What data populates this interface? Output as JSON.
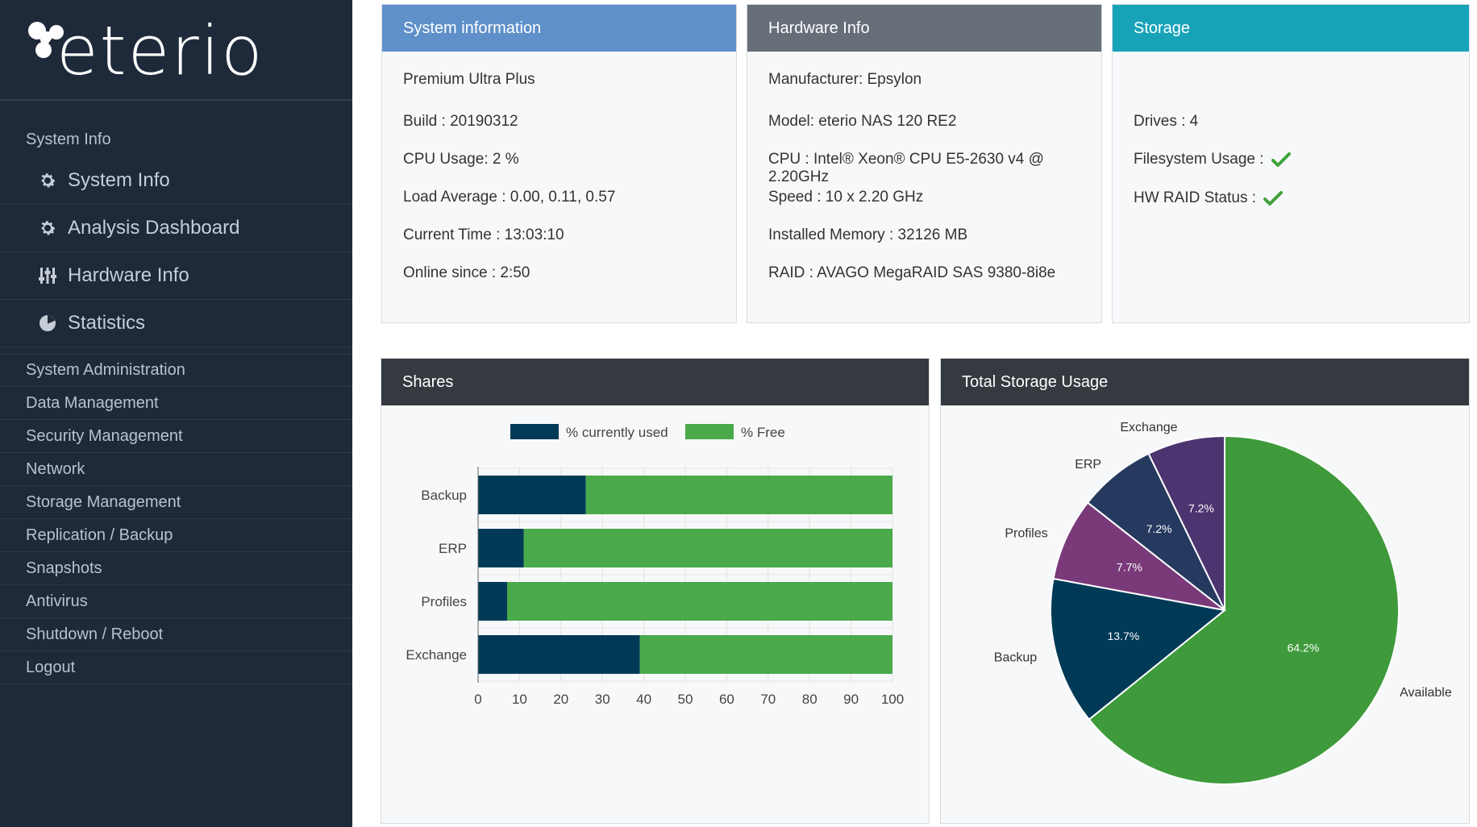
{
  "brand": {
    "name": "eterio"
  },
  "sidebar": {
    "section_title": "System Info",
    "sub_items": [
      {
        "label": "System Info",
        "icon": "gear-icon"
      },
      {
        "label": "Analysis Dashboard",
        "icon": "gear-icon"
      },
      {
        "label": "Hardware Info",
        "icon": "sliders-icon"
      },
      {
        "label": "Statistics",
        "icon": "pie-chart-icon"
      }
    ],
    "items": [
      "System Administration",
      "Data Management",
      "Security Management",
      "Network",
      "Storage Management",
      "Replication / Backup",
      "Snapshots",
      "Antivirus",
      "Shutdown / Reboot",
      "Logout"
    ]
  },
  "system_info": {
    "title": "System information",
    "edition": "Premium Ultra Plus",
    "build": "Build : 20190312",
    "cpu_usage": "CPU Usage: 2 %",
    "load_average": "Load Average : 0.00, 0.11, 0.57",
    "current_time": "Current Time : 13:03:10",
    "online_since": "Online since : 2:50"
  },
  "hardware_info": {
    "title": "Hardware Info",
    "manufacturer": "Manufacturer: Epsylon",
    "model": "Model: eterio NAS 120 RE2",
    "cpu": "CPU : Intel® Xeon® CPU E5-2630 v4 @ 2.20GHz",
    "speed": "Speed : 10 x 2.20 GHz",
    "memory": "Installed Memory : 32126 MB",
    "raid": "RAID : AVAGO MegaRAID SAS 9380-8i8e"
  },
  "storage": {
    "title": "Storage",
    "drives": "Drives : 4",
    "filesystem_usage": "Filesystem Usage :",
    "hw_raid_status": "HW RAID Status :"
  },
  "colors": {
    "used": "#003a57",
    "free": "#4aa94a",
    "pie_available": "#3f9a3c",
    "pie_backup": "#003a57",
    "pie_profiles": "#7a3a7a",
    "pie_erp": "#263a60",
    "pie_exchange": "#4c3470"
  },
  "shares_panel": {
    "title": "Shares"
  },
  "storage_panel": {
    "title": "Total Storage Usage"
  },
  "chart_data": [
    {
      "type": "bar",
      "orientation": "horizontal",
      "stacked": true,
      "categories": [
        "Backup",
        "ERP",
        "Profiles",
        "Exchange"
      ],
      "series": [
        {
          "name": "% currently used",
          "values": [
            26,
            11,
            7,
            39
          ]
        },
        {
          "name": "% Free",
          "values": [
            74,
            89,
            93,
            61
          ]
        }
      ],
      "xlim": [
        0,
        100
      ],
      "xticks": [
        0,
        10,
        20,
        30,
        40,
        50,
        60,
        70,
        80,
        90,
        100
      ],
      "legend": "top"
    },
    {
      "type": "pie",
      "labels": [
        "Available",
        "Backup",
        "Profiles",
        "ERP",
        "Exchange"
      ],
      "values": [
        64.2,
        13.7,
        7.7,
        7.2,
        7.2
      ],
      "value_labels": [
        "64.2%",
        "13.7%",
        "7.7%",
        "7.2%",
        "7.2%"
      ]
    }
  ]
}
